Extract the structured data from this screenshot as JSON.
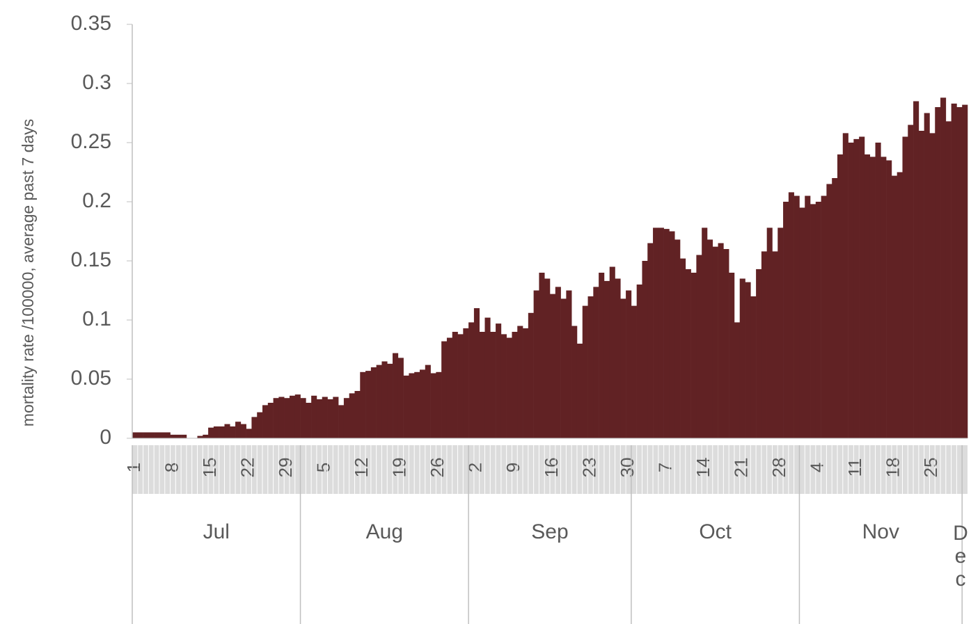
{
  "chart_data": {
    "type": "bar",
    "y_label": "mortality rate /100000, average past 7 days",
    "color": "#612224",
    "ylim": [
      0,
      0.35
    ],
    "yticks": [
      0,
      0.05,
      0.1,
      0.15,
      0.2,
      0.25,
      0.3,
      0.35
    ],
    "groups": [
      {
        "name": "Jul",
        "categories": [
          1,
          null,
          null,
          null,
          null,
          null,
          null,
          8,
          null,
          null,
          null,
          null,
          null,
          null,
          15,
          null,
          null,
          null,
          null,
          null,
          null,
          22,
          null,
          null,
          null,
          null,
          null,
          null,
          29,
          null,
          null
        ],
        "values": [
          0.005,
          0.005,
          0.005,
          0.005,
          0.005,
          0.005,
          0.005,
          0.003,
          0.003,
          0.003,
          0,
          0,
          0.002,
          0.003,
          0.009,
          0.01,
          0.01,
          0.012,
          0.01,
          0.014,
          0.012,
          0.008,
          0.018,
          0.022,
          0.028,
          0.03,
          0.034,
          0.035,
          0.034,
          0.036,
          0.037
        ]
      },
      {
        "name": "Aug",
        "categories": [
          null,
          null,
          null,
          null,
          5,
          null,
          null,
          null,
          null,
          null,
          null,
          12,
          null,
          null,
          null,
          null,
          null,
          null,
          19,
          null,
          null,
          null,
          null,
          null,
          null,
          26,
          null,
          null,
          null,
          null,
          null
        ],
        "values": [
          0.034,
          0.03,
          0.036,
          0.033,
          0.035,
          0.033,
          0.035,
          0.028,
          0.034,
          0.038,
          0.04,
          0.056,
          0.057,
          0.06,
          0.062,
          0.065,
          0.063,
          0.072,
          0.068,
          0.053,
          0.055,
          0.056,
          0.058,
          0.062,
          0.055,
          0.056,
          0.082,
          0.085,
          0.09,
          0.088,
          0.093
        ]
      },
      {
        "name": "Sep",
        "categories": [
          null,
          2,
          null,
          null,
          null,
          null,
          null,
          null,
          9,
          null,
          null,
          null,
          null,
          null,
          null,
          16,
          null,
          null,
          null,
          null,
          null,
          null,
          23,
          null,
          null,
          null,
          null,
          null,
          null,
          30
        ],
        "values": [
          0.098,
          0.11,
          0.09,
          0.102,
          0.09,
          0.097,
          0.088,
          0.085,
          0.09,
          0.095,
          0.093,
          0.106,
          0.125,
          0.14,
          0.135,
          0.122,
          0.128,
          0.118,
          0.125,
          0.095,
          0.08,
          0.112,
          0.12,
          0.128,
          0.14,
          0.133,
          0.145,
          0.135,
          0.118,
          0.125
        ]
      },
      {
        "name": "Oct",
        "categories": [
          null,
          null,
          null,
          null,
          null,
          null,
          7,
          null,
          null,
          null,
          null,
          null,
          null,
          14,
          null,
          null,
          null,
          null,
          null,
          null,
          21,
          null,
          null,
          null,
          null,
          null,
          null,
          28,
          null,
          null,
          null
        ],
        "values": [
          0.112,
          0.13,
          0.15,
          0.165,
          0.178,
          0.178,
          0.177,
          0.175,
          0.168,
          0.152,
          0.143,
          0.14,
          0.155,
          0.178,
          0.168,
          0.162,
          0.165,
          0.16,
          0.14,
          0.098,
          0.135,
          0.132,
          0.12,
          0.143,
          0.158,
          0.178,
          0.158,
          0.178,
          0.2,
          0.208,
          0.205
        ]
      },
      {
        "name": "Nov",
        "categories": [
          null,
          null,
          null,
          4,
          null,
          null,
          null,
          null,
          null,
          null,
          11,
          null,
          null,
          null,
          null,
          null,
          null,
          18,
          null,
          null,
          null,
          null,
          null,
          null,
          25,
          null,
          null,
          null,
          null,
          null
        ],
        "values": [
          0.195,
          0.205,
          0.198,
          0.2,
          0.205,
          0.215,
          0.22,
          0.24,
          0.258,
          0.25,
          0.253,
          0.255,
          0.24,
          0.238,
          0.25,
          0.238,
          0.235,
          0.222,
          0.225,
          0.255,
          0.265,
          0.285,
          0.26,
          0.275,
          0.258,
          0.28,
          0.288,
          0.268,
          0.283,
          0.28
        ]
      },
      {
        "name": "Dec",
        "categories": [
          null
        ],
        "values": [
          0.282
        ]
      }
    ]
  }
}
